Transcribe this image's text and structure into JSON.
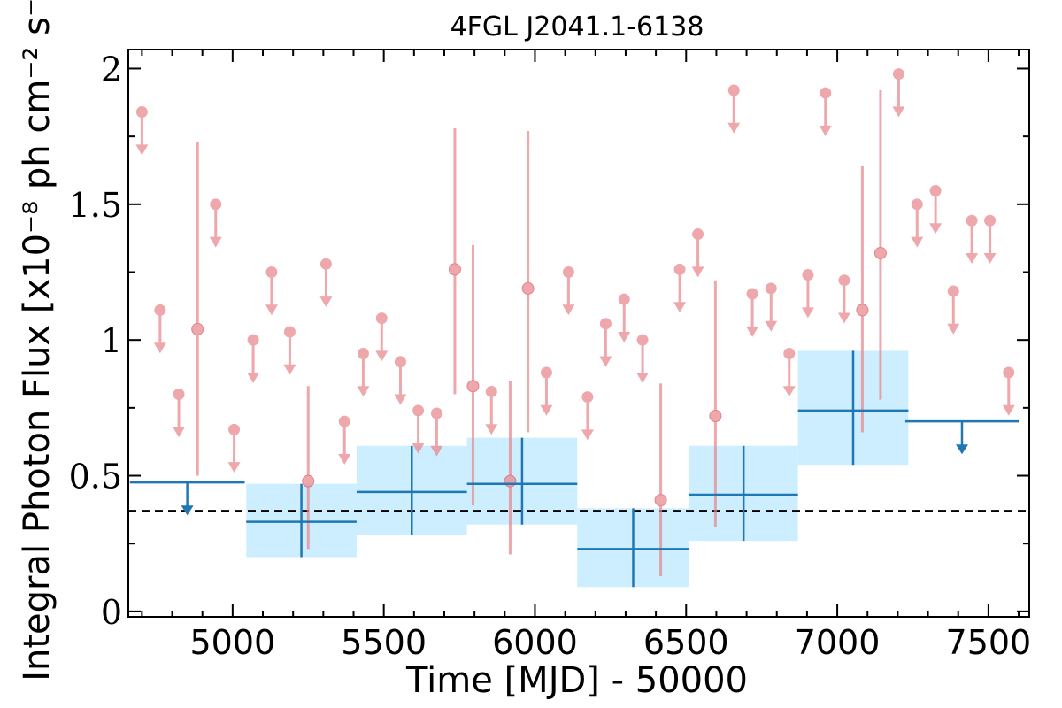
{
  "chart_data": {
    "type": "scatter",
    "title": "4FGL J2041.1-6138",
    "xlabel": "Time [MJD] - 50000",
    "ylabel": "Integral Photon Flux [x10⁻⁸ ph cm⁻² s⁻¹]",
    "xlim": [
      4655,
      7635
    ],
    "ylim": [
      -0.02,
      2.07
    ],
    "xticks": [
      5000,
      5500,
      6000,
      6500,
      7000,
      7500
    ],
    "yticks": [
      0,
      0.5,
      1,
      1.5,
      2
    ],
    "ytick_labels": [
      "0",
      "0.5",
      "1",
      "1.5",
      "2"
    ],
    "grid": false,
    "colors": {
      "short_bins": "#e8878d",
      "long_bins": "#1f77b4",
      "long_band": "#cdeeff",
      "reference_line": "#000000"
    },
    "reference_line": {
      "y": 0.37,
      "style": "dashed"
    },
    "short_bin_upper_limits": [
      {
        "x": 4700,
        "y": 1.84
      },
      {
        "x": 4760,
        "y": 1.11
      },
      {
        "x": 4822,
        "y": 0.8
      },
      {
        "x": 4944,
        "y": 1.5
      },
      {
        "x": 5005,
        "y": 0.67
      },
      {
        "x": 5068,
        "y": 1.0
      },
      {
        "x": 5129,
        "y": 1.25
      },
      {
        "x": 5189,
        "y": 1.03
      },
      {
        "x": 5309,
        "y": 1.28
      },
      {
        "x": 5370,
        "y": 0.7
      },
      {
        "x": 5432,
        "y": 0.95
      },
      {
        "x": 5493,
        "y": 1.08
      },
      {
        "x": 5555,
        "y": 0.92
      },
      {
        "x": 5614,
        "y": 0.74
      },
      {
        "x": 5675,
        "y": 0.73
      },
      {
        "x": 5856,
        "y": 0.81
      },
      {
        "x": 6038,
        "y": 0.88
      },
      {
        "x": 6111,
        "y": 1.25
      },
      {
        "x": 6174,
        "y": 0.79
      },
      {
        "x": 6234,
        "y": 1.06
      },
      {
        "x": 6295,
        "y": 1.15
      },
      {
        "x": 6356,
        "y": 1.0
      },
      {
        "x": 6479,
        "y": 1.26
      },
      {
        "x": 6539,
        "y": 1.39
      },
      {
        "x": 6658,
        "y": 1.92
      },
      {
        "x": 6719,
        "y": 1.17
      },
      {
        "x": 6781,
        "y": 1.19
      },
      {
        "x": 6841,
        "y": 0.95
      },
      {
        "x": 6903,
        "y": 1.24
      },
      {
        "x": 6961,
        "y": 1.91
      },
      {
        "x": 7023,
        "y": 1.22
      },
      {
        "x": 7203,
        "y": 1.98
      },
      {
        "x": 7264,
        "y": 1.5
      },
      {
        "x": 7325,
        "y": 1.55
      },
      {
        "x": 7384,
        "y": 1.18
      },
      {
        "x": 7445,
        "y": 1.44
      },
      {
        "x": 7505,
        "y": 1.44
      },
      {
        "x": 7567,
        "y": 0.88
      }
    ],
    "short_bin_detections": [
      {
        "x": 4884,
        "y": 1.04,
        "ylow": 0.5,
        "yhigh": 1.73
      },
      {
        "x": 5250,
        "y": 0.48,
        "ylow": 0.23,
        "yhigh": 0.83
      },
      {
        "x": 5735,
        "y": 1.26,
        "ylow": 0.8,
        "yhigh": 1.78
      },
      {
        "x": 5795,
        "y": 0.83,
        "ylow": 0.39,
        "yhigh": 1.35
      },
      {
        "x": 5918,
        "y": 0.48,
        "ylow": 0.21,
        "yhigh": 0.85
      },
      {
        "x": 5977,
        "y": 1.19,
        "ylow": 0.66,
        "yhigh": 1.77
      },
      {
        "x": 6416,
        "y": 0.41,
        "ylow": 0.13,
        "yhigh": 0.84
      },
      {
        "x": 6597,
        "y": 0.72,
        "ylow": 0.31,
        "yhigh": 1.22
      },
      {
        "x": 7083,
        "y": 1.11,
        "ylow": 0.66,
        "yhigh": 1.64
      },
      {
        "x": 7143,
        "y": 1.32,
        "ylow": 0.78,
        "yhigh": 1.92
      }
    ],
    "long_bin_upper_limits": [
      {
        "x0": 4660,
        "x1": 5040,
        "y": 0.475
      },
      {
        "x0": 7225,
        "x1": 7600,
        "y": 0.7
      }
    ],
    "long_bin_detections": [
      {
        "x0": 5045,
        "x1": 5410,
        "y": 0.33,
        "ylow": 0.2,
        "yhigh": 0.47
      },
      {
        "x0": 5410,
        "x1": 5775,
        "y": 0.44,
        "ylow": 0.28,
        "yhigh": 0.61
      },
      {
        "x0": 5775,
        "x1": 6140,
        "y": 0.47,
        "ylow": 0.32,
        "yhigh": 0.64
      },
      {
        "x0": 6140,
        "x1": 6510,
        "y": 0.23,
        "ylow": 0.09,
        "yhigh": 0.38
      },
      {
        "x0": 6510,
        "x1": 6870,
        "y": 0.43,
        "ylow": 0.26,
        "yhigh": 0.61
      },
      {
        "x0": 6870,
        "x1": 7235,
        "y": 0.74,
        "ylow": 0.54,
        "yhigh": 0.96
      }
    ]
  }
}
